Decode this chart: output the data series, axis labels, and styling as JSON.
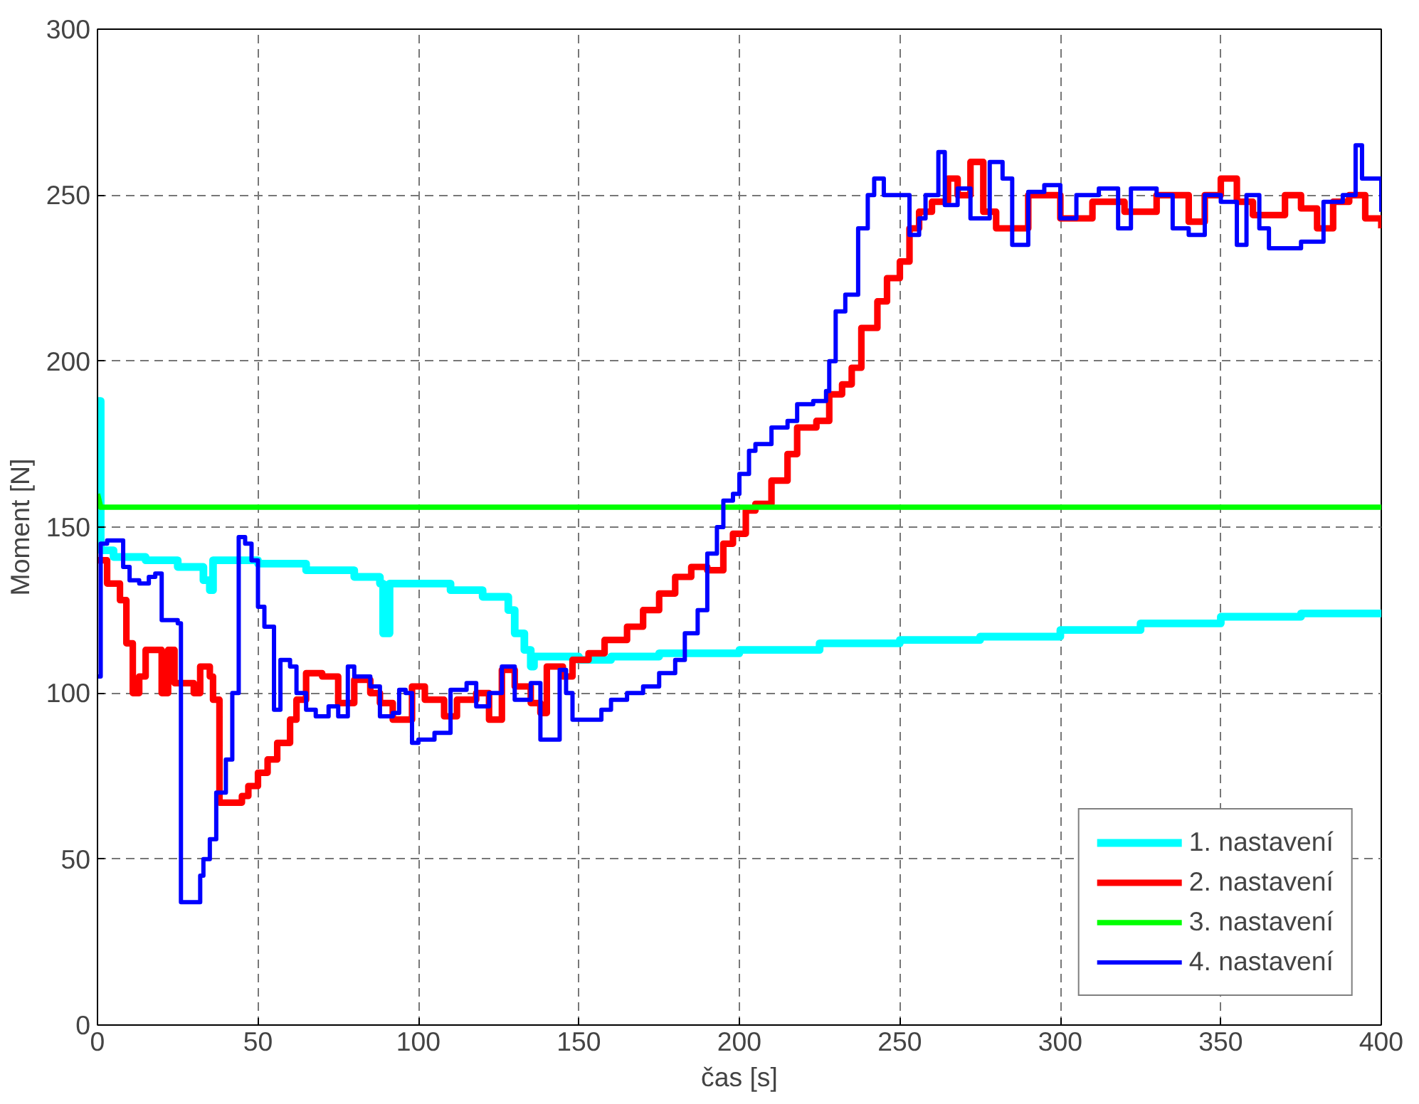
{
  "chart_data": {
    "type": "step",
    "xlabel": "čas [s]",
    "ylabel": "Moment [N]",
    "xlim": [
      0,
      400
    ],
    "ylim": [
      0,
      300
    ],
    "xticks": [
      0,
      50,
      100,
      150,
      200,
      250,
      300,
      350,
      400
    ],
    "yticks": [
      0,
      50,
      100,
      150,
      200,
      250,
      300
    ],
    "grid": true,
    "legend": "bottom right",
    "line_style": "solid",
    "series": [
      {
        "name": "1. nastavení",
        "color": "#00ffff",
        "x": [
          0,
          1,
          5,
          15,
          25,
          33,
          35,
          36,
          50,
          65,
          80,
          88,
          89,
          91,
          92,
          100,
          110,
          120,
          128,
          130,
          133,
          135,
          136,
          140,
          150,
          160,
          175,
          200,
          225,
          250,
          275,
          300,
          325,
          350,
          375,
          400
        ],
        "values": [
          188,
          143,
          141,
          140,
          138,
          134,
          131,
          140,
          139,
          137,
          135,
          133,
          118,
          133,
          133,
          133,
          131,
          129,
          125,
          118,
          113,
          108,
          111,
          111,
          110,
          111,
          112,
          113,
          115,
          116,
          117,
          119,
          121,
          123,
          124,
          125
        ]
      },
      {
        "name": "2. nastavení",
        "color": "#ff0000",
        "x": [
          0,
          3,
          7,
          9,
          11,
          13,
          15,
          18,
          20,
          22,
          24,
          28,
          30,
          32,
          35,
          36,
          38,
          45,
          47,
          50,
          53,
          56,
          60,
          62,
          65,
          70,
          75,
          80,
          85,
          88,
          92,
          98,
          102,
          108,
          112,
          118,
          122,
          126,
          130,
          135,
          138,
          140,
          145,
          148,
          153,
          158,
          165,
          170,
          175,
          180,
          185,
          190,
          195,
          198,
          202,
          205,
          210,
          215,
          218,
          224,
          228,
          232,
          235,
          238,
          243,
          246,
          250,
          253,
          256,
          260,
          265,
          268,
          272,
          276,
          280,
          290,
          300,
          310,
          320,
          330,
          340,
          345,
          350,
          355,
          360,
          370,
          375,
          380,
          385,
          390,
          395,
          400
        ],
        "values": [
          140,
          133,
          128,
          115,
          100,
          105,
          113,
          113,
          100,
          113,
          103,
          103,
          100,
          108,
          105,
          98,
          67,
          69,
          72,
          76,
          80,
          85,
          92,
          98,
          106,
          105,
          97,
          104,
          100,
          97,
          92,
          102,
          98,
          93,
          98,
          100,
          92,
          107,
          102,
          97,
          94,
          108,
          105,
          110,
          112,
          116,
          120,
          125,
          130,
          135,
          138,
          137,
          145,
          148,
          155,
          157,
          164,
          172,
          180,
          182,
          190,
          193,
          198,
          210,
          218,
          225,
          230,
          240,
          245,
          248,
          255,
          250,
          260,
          245,
          240,
          250,
          243,
          248,
          245,
          250,
          242,
          250,
          255,
          248,
          244,
          250,
          246,
          240,
          248,
          250,
          243,
          240
        ]
      },
      {
        "name": "3. nastavení",
        "type": "line",
        "color": "#00ff00",
        "x": [
          0,
          1,
          400
        ],
        "values": [
          160,
          156,
          156
        ]
      },
      {
        "name": "4. nastavení",
        "color": "#0000ff",
        "x": [
          0,
          1,
          3,
          8,
          10,
          13,
          16,
          18,
          20,
          25,
          26,
          30,
          32,
          33,
          35,
          37,
          40,
          42,
          44,
          46,
          48,
          50,
          52,
          55,
          57,
          60,
          62,
          65,
          68,
          72,
          75,
          78,
          80,
          85,
          88,
          92,
          94,
          96,
          98,
          100,
          105,
          110,
          115,
          118,
          122,
          126,
          130,
          135,
          138,
          142,
          144,
          146,
          148,
          152,
          157,
          160,
          165,
          170,
          175,
          180,
          183,
          187,
          190,
          193,
          195,
          198,
          200,
          203,
          205,
          210,
          215,
          218,
          223,
          227,
          228,
          230,
          233,
          237,
          240,
          242,
          245,
          250,
          253,
          256,
          258,
          262,
          264,
          268,
          272,
          278,
          282,
          285,
          290,
          295,
          300,
          305,
          312,
          318,
          322,
          330,
          335,
          340,
          345,
          350,
          355,
          358,
          362,
          365,
          375,
          382,
          388,
          392,
          394,
          400
        ],
        "values": [
          105,
          145,
          146,
          138,
          134,
          133,
          135,
          136,
          122,
          121,
          37,
          37,
          45,
          50,
          56,
          70,
          80,
          100,
          147,
          145,
          140,
          126,
          120,
          95,
          110,
          108,
          100,
          95,
          93,
          96,
          93,
          108,
          105,
          102,
          93,
          94,
          101,
          100,
          85,
          86,
          88,
          101,
          103,
          96,
          100,
          108,
          98,
          103,
          86,
          86,
          107,
          100,
          92,
          92,
          95,
          98,
          100,
          102,
          106,
          110,
          118,
          125,
          142,
          150,
          158,
          160,
          166,
          173,
          175,
          180,
          182,
          187,
          188,
          191,
          200,
          215,
          220,
          240,
          250,
          255,
          250,
          250,
          238,
          243,
          250,
          263,
          247,
          252,
          243,
          260,
          255,
          235,
          251,
          253,
          243,
          250,
          252,
          240,
          252,
          250,
          240,
          238,
          250,
          248,
          235,
          250,
          240,
          234,
          236,
          248,
          250,
          265,
          255,
          245
        ]
      }
    ]
  }
}
